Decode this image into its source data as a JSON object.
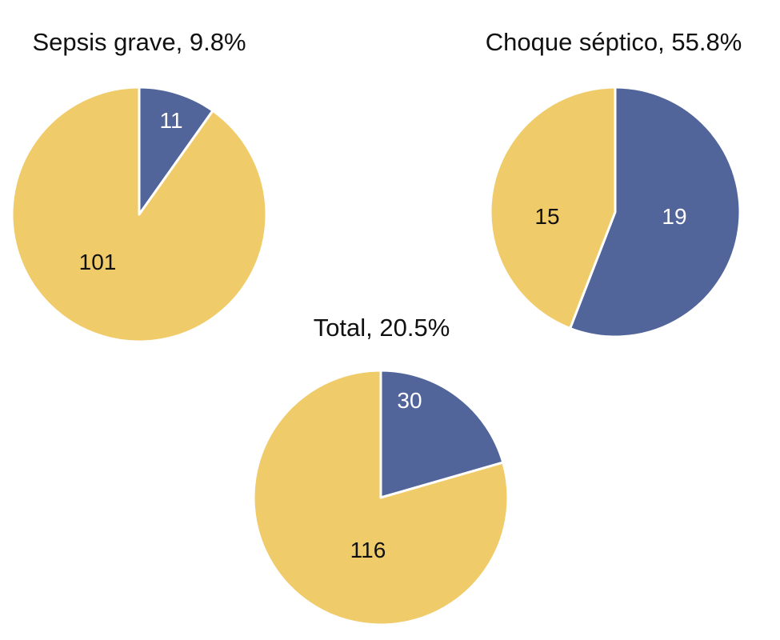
{
  "colors": {
    "blue": "#51659b",
    "yellow": "#f0cb6a",
    "separator": "#ffffff",
    "label_on_blue": "#ffffff",
    "label_on_yellow": "#111111"
  },
  "chart_data": [
    {
      "type": "pie",
      "title": "Sepsis grave, 9.8%",
      "slices": [
        {
          "label": "11",
          "value": 11,
          "color": "#51659b"
        },
        {
          "label": "101",
          "value": 101,
          "color": "#f0cb6a"
        }
      ]
    },
    {
      "type": "pie",
      "title": "Choque séptico, 55.8%",
      "slices": [
        {
          "label": "19",
          "value": 19,
          "color": "#51659b"
        },
        {
          "label": "15",
          "value": 15,
          "color": "#f0cb6a"
        }
      ]
    },
    {
      "type": "pie",
      "title": "Total, 20.5%",
      "slices": [
        {
          "label": "30",
          "value": 30,
          "color": "#51659b"
        },
        {
          "label": "116",
          "value": 116,
          "color": "#f0cb6a"
        }
      ]
    }
  ]
}
